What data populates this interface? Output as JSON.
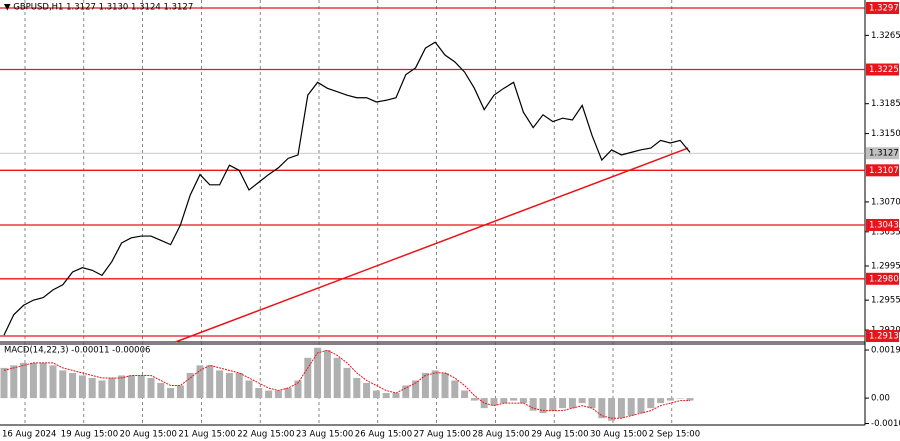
{
  "chart_data": [
    {
      "type": "price",
      "title": "▼ GBPUSD,H1 1.3127 1.3130 1.3124 1.3127",
      "categories": [
        "16 Aug 2024",
        null,
        null,
        null,
        null,
        null,
        "19 Aug 15:00",
        null,
        null,
        null,
        null,
        null,
        "20 Aug 15:00",
        null,
        null,
        null,
        null,
        null,
        "21 Aug 15:00",
        null,
        null,
        null,
        null,
        null,
        "22 Aug 15:00",
        null,
        null,
        null,
        null,
        null,
        "23 Aug 15:00",
        null,
        null,
        null,
        null,
        null,
        "26 Aug 15:00",
        null,
        null,
        null,
        null,
        null,
        "27 Aug 15:00",
        null,
        null,
        null,
        null,
        null,
        "28 Aug 15:00",
        null,
        null,
        null,
        null,
        null,
        "29 Aug 15:00",
        null,
        null,
        null,
        null,
        null,
        "30 Aug 15:00",
        null,
        null,
        null,
        null,
        null,
        "2 Sep 15:00",
        null,
        null,
        null,
        null
      ],
      "series": [
        {
          "color": "#000000",
          "values": [
            1.2914,
            1.2938,
            1.2949,
            1.2955,
            1.2958,
            1.2967,
            1.2973,
            1.2988,
            1.2993,
            1.299,
            1.2984,
            1.3,
            1.3022,
            1.3028,
            1.303,
            1.303,
            1.3025,
            1.302,
            1.3043,
            1.3078,
            1.3102,
            1.309,
            1.309,
            1.3113,
            1.3107,
            1.3084,
            1.3093,
            1.3102,
            1.311,
            1.3121,
            1.3125,
            1.3195,
            1.321,
            1.3203,
            1.3199,
            1.3195,
            1.3192,
            1.3192,
            1.3187,
            1.3189,
            1.3192,
            1.3219,
            1.3227,
            1.325,
            1.3257,
            1.3242,
            1.3234,
            1.3222,
            1.3203,
            1.3178,
            1.3195,
            1.3203,
            1.321,
            1.3175,
            1.3157,
            1.3172,
            1.3164,
            1.3168,
            1.3166,
            1.3183,
            1.3148,
            1.3119,
            1.3131,
            1.3125,
            1.3128,
            1.3131,
            1.3133,
            1.3142,
            1.3139,
            1.3142,
            1.3128
          ]
        }
      ],
      "ylim": [
        1.2906,
        1.33064
      ],
      "yticks": [
        1.3265,
        {
          "value": 1.315,
          "label": "1.3150"
        },
        1.3185,
        {
          "value": 1.307,
          "label": "1.3070"
        },
        1.3035,
        1.2995,
        1.2955,
        {
          "value": 1.292,
          "label": "1.2920"
        }
      ],
      "levels": {
        "color": "#e8141a",
        "values": [
          1.3297,
          1.3225,
          1.3107,
          1.3043,
          {
            "value": 1.298,
            "label": "1.2980"
          },
          1.2913
        ]
      },
      "current_price": 1.3127,
      "trendline": {
        "color": "#e8141a",
        "from": {
          "index": 17.5,
          "price": 1.2906
        },
        "to": {
          "index": 69.8,
          "price": 1.3133
        }
      }
    },
    {
      "type": "macd",
      "title": "MACD(14,22,3) -0.00011 -0.00006",
      "series": [
        {
          "name": "histogram",
          "color": "#b0b0b0",
          "values": [
            0.0012,
            0.0013,
            0.0014,
            0.0014,
            0.0014,
            0.0013,
            0.0011,
            0.001,
            0.0009,
            0.0008,
            0.0007,
            0.0008,
            0.0009,
            0.0009,
            0.0009,
            0.0008,
            0.0006,
            0.0004,
            0.0005,
            0.001,
            0.0013,
            0.0013,
            0.0011,
            0.001,
            0.001,
            0.0007,
            0.0004,
            0.0003,
            0.0003,
            0.0004,
            0.0007,
            0.0016,
            0.002,
            0.0019,
            0.0016,
            0.0012,
            0.0008,
            0.0006,
            0.0003,
            0.0002,
            0.0002,
            0.0005,
            0.0007,
            0.001,
            0.0011,
            0.001,
            0.0007,
            0.0003,
            -0.0001,
            -0.0004,
            -0.0003,
            -0.0002,
            -0.0001,
            -0.0002,
            -0.0005,
            -0.0006,
            -0.0005,
            -0.0004,
            -0.0004,
            -0.0002,
            -0.0004,
            -0.0008,
            -0.0009,
            -0.0008,
            -0.0007,
            -0.0006,
            -0.0004,
            -0.0002,
            -0.0001,
            0.0,
            -0.0001
          ]
        },
        {
          "name": "signal",
          "color": "#e8141a",
          "values": [
            0.0011,
            0.0012,
            0.0013,
            0.0014,
            0.0014,
            0.0014,
            0.0012,
            0.0011,
            0.001,
            0.0009,
            0.0008,
            0.0008,
            0.0008,
            0.0009,
            0.0009,
            0.0009,
            0.0007,
            0.0005,
            0.0005,
            0.0008,
            0.0011,
            0.0013,
            0.0012,
            0.0011,
            0.001,
            0.0008,
            0.0006,
            0.0004,
            0.0003,
            0.0004,
            0.0006,
            0.0012,
            0.0018,
            0.0019,
            0.0017,
            0.0014,
            0.001,
            0.0007,
            0.0005,
            0.0003,
            0.0002,
            0.0004,
            0.0006,
            0.0009,
            0.001,
            0.001,
            0.0008,
            0.0005,
            0.0001,
            -0.0002,
            -0.0003,
            -0.0002,
            -0.0002,
            -0.0002,
            -0.0004,
            -0.0005,
            -0.0005,
            -0.0005,
            -0.0004,
            -0.0003,
            -0.0004,
            -0.0007,
            -0.0008,
            -0.0008,
            -0.0007,
            -0.0006,
            -0.0005,
            -0.0003,
            -0.0002,
            -0.0001,
            -0.0001
          ]
        }
      ],
      "ylim": [
        -0.00107,
        0.00215
      ],
      "yticks": [
        0.00191,
        {
          "value": 0,
          "label": "0.00"
        },
        -0.00101
      ]
    }
  ]
}
